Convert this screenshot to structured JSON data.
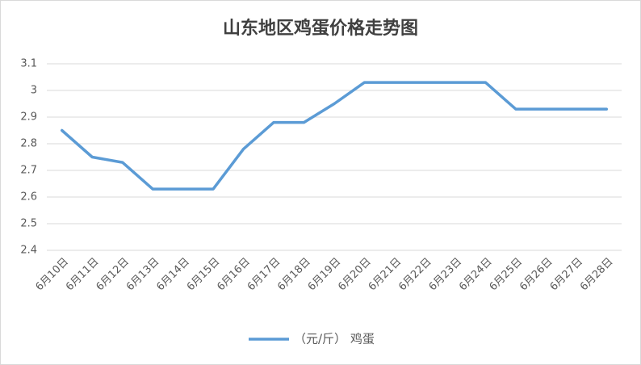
{
  "chart_data": {
    "type": "line",
    "title": "山东地区鸡蛋价格走势图",
    "categories": [
      "6月10日",
      "6月11日",
      "6月12日",
      "6月13日",
      "6月14日",
      "6月15日",
      "6月16日",
      "6月17日",
      "6月18日",
      "6月19日",
      "6月20日",
      "6月21日",
      "6月22日",
      "6月23日",
      "6月24日",
      "6月25日",
      "6月26日",
      "6月27日",
      "6月28日"
    ],
    "series": [
      {
        "name": "（元/斤） 鸡蛋",
        "color": "#5b9bd5",
        "values": [
          2.85,
          2.75,
          2.73,
          2.63,
          2.63,
          2.63,
          2.78,
          2.88,
          2.88,
          2.95,
          3.03,
          3.03,
          3.03,
          3.03,
          3.03,
          2.93,
          2.93,
          2.93,
          2.93
        ]
      }
    ],
    "ylim": [
      2.4,
      3.1
    ],
    "yticks": [
      2.4,
      2.5,
      2.6,
      2.7,
      2.8,
      2.9,
      3,
      3.1
    ],
    "grid": true,
    "legend": "bottom"
  }
}
